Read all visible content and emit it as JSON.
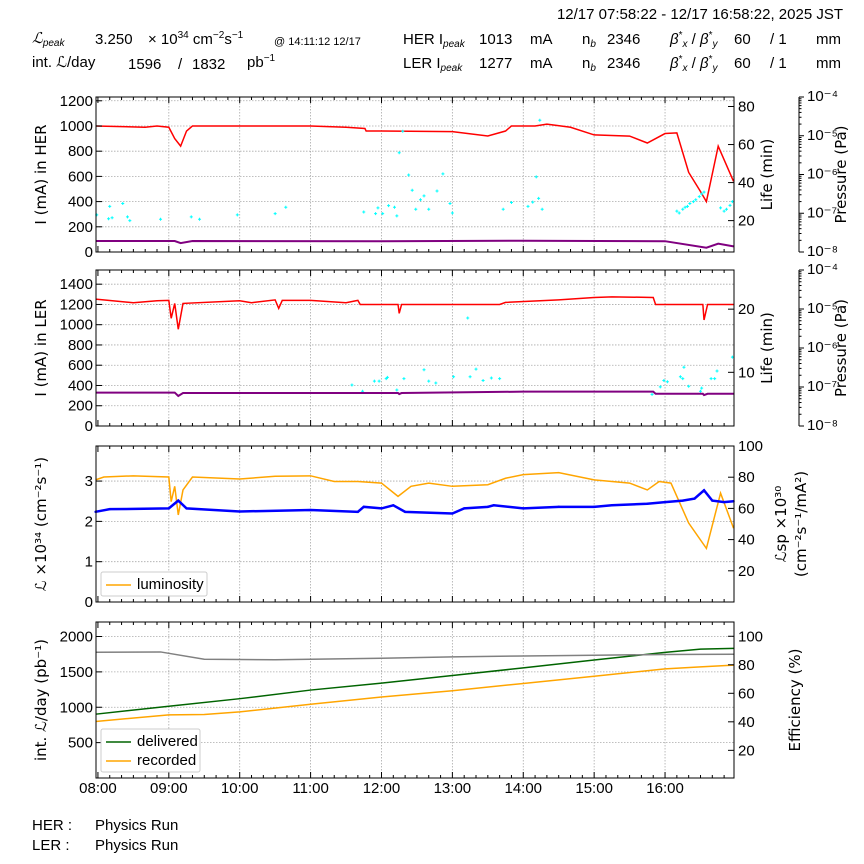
{
  "header": {
    "time_range": "12/17 07:58:22 - 12/17 16:58:22, 2025 JST",
    "lpeak_symbol": "ℒ",
    "lpeak_sub": "peak",
    "lpeak_value": "3.250",
    "lpeak_unit": "× 10",
    "lpeak_exp": "34",
    "lpeak_unit2": " cm",
    "lpeak_exp2": "−2",
    "lpeak_unit3": "s",
    "lpeak_exp3": "−1",
    "lpeak_time": "@ 14:11:12 12/17",
    "int_label": "int. ℒ/day",
    "int_recorded": "1596",
    "int_sep": "/",
    "int_delivered": "1832",
    "int_unit": "pb",
    "int_unit_exp": "−1",
    "rings": [
      {
        "label": "HER I",
        "sub": "peak",
        "current": "1013",
        "unit": "mA",
        "nb_label": "n",
        "nb_sub": "b",
        "nb": "2346",
        "beta_label": "β",
        "beta_x_sub": "x",
        "beta_y_sub": "y",
        "beta_x": "60",
        "beta_y": "/ 1",
        "beta_unit": "mm"
      },
      {
        "label": "LER I",
        "sub": "peak",
        "current": "1277",
        "unit": "mA",
        "nb_label": "n",
        "nb_sub": "b",
        "nb": "2346",
        "beta_label": "β",
        "beta_x_sub": "x",
        "beta_y_sub": "y",
        "beta_x": "60",
        "beta_y": "/ 1",
        "beta_unit": "mm"
      }
    ]
  },
  "footer": {
    "her_label": "HER :",
    "her_status": "Physics Run",
    "ler_label": "LER :",
    "ler_status": "Physics Run"
  },
  "chart_data": [
    {
      "type": "line",
      "ylabel": "I (mA) in HER",
      "ylabel_right": "Life (min)",
      "ylabel_pressure": "Pressure (Pa)",
      "xlim": [
        "07:58:22",
        "16:58:22"
      ],
      "xticks": [
        "08:00",
        "09:00",
        "10:00",
        "11:00",
        "12:00",
        "13:00",
        "14:00",
        "15:00",
        "16:00"
      ],
      "ylim": [
        0,
        1230
      ],
      "yticks": [
        0,
        200,
        400,
        600,
        800,
        1000,
        1200
      ],
      "ylim_right": [
        3.5,
        85
      ],
      "yticks_right": [
        20,
        40,
        60,
        80
      ],
      "pressure_lim": [
        1e-08,
        0.0001
      ],
      "pressure_ticks": [
        "10⁻⁸",
        "10⁻⁷",
        "10⁻⁶",
        "10⁻⁵",
        "10⁻⁴"
      ],
      "grid": true,
      "series": [
        {
          "id": "her-current",
          "axis": "left",
          "style": "line",
          "color": "#ff0000",
          "x": [
            "07:58",
            "08:40",
            "08:50",
            "09:00",
            "09:05",
            "09:10",
            "09:15",
            "09:20",
            "10:00",
            "11:00",
            "11:30",
            "11:46",
            "11:47",
            "12:00",
            "13:00",
            "13:30",
            "13:45",
            "13:50",
            "14:10",
            "14:20",
            "14:40",
            "15:00",
            "15:30",
            "15:45",
            "16:00",
            "16:10",
            "16:20",
            "16:30",
            "16:35",
            "16:45",
            "16:58"
          ],
          "y": [
            1000,
            990,
            1000,
            990,
            900,
            840,
            960,
            1000,
            1000,
            1000,
            990,
            980,
            960,
            960,
            955,
            921,
            960,
            1000,
            1000,
            1015,
            990,
            929,
            920,
            865,
            940,
            945,
            632,
            480,
            400,
            840,
            560
          ]
        },
        {
          "id": "her-life",
          "axis": "right",
          "style": "scatter",
          "color": "#00ffff",
          "x": [
            "07:59",
            "08:09",
            "08:10",
            "08:12",
            "08:21",
            "08:25",
            "08:27",
            "08:53",
            "09:19",
            "09:26",
            "09:58",
            "10:30",
            "10:39",
            "11:45",
            "11:55",
            "11:57",
            "12:01",
            "12:06",
            "12:11",
            "12:13",
            "12:15",
            "12:18",
            "12:23",
            "12:26",
            "12:29",
            "12:33",
            "12:36",
            "12:40",
            "12:47",
            "12:52",
            "12:58",
            "13:00",
            "13:43",
            "13:50",
            "14:04",
            "14:08",
            "14:11",
            "14:13",
            "14:14",
            "14:16",
            "16:10",
            "16:12",
            "16:15",
            "16:17",
            "16:19",
            "16:21",
            "16:24",
            "16:26",
            "16:29",
            "16:31",
            "16:33",
            "16:47",
            "16:50",
            "16:52",
            "16:55",
            "16:57"
          ],
          "y": [
            23,
            21,
            27.5,
            21.5,
            29,
            22,
            20,
            20.7,
            22,
            20.7,
            23,
            23.7,
            27,
            24.5,
            23.7,
            26.7,
            23.7,
            27.9,
            27,
            22.5,
            55.7,
            67,
            44,
            36,
            26,
            31,
            33,
            26,
            35.6,
            44.6,
            29,
            24,
            26,
            29.5,
            27.5,
            29.7,
            43,
            31.7,
            72.8,
            26,
            25,
            24,
            26,
            27,
            27.5,
            29,
            30,
            31,
            32.6,
            34,
            35,
            26.7,
            25,
            26,
            28,
            30
          ]
        },
        {
          "id": "her-pressure",
          "axis": "pressure",
          "style": "line",
          "color": "#800080",
          "x": [
            "07:58",
            "09:05",
            "09:10",
            "09:20",
            "12:00",
            "14:00",
            "16:00",
            "16:35",
            "16:45",
            "16:58"
          ],
          "y": [
            1.92e-08,
            1.92e-08,
            1.7e-08,
            1.92e-08,
            1.9e-08,
            1.95e-08,
            1.9e-08,
            1.29e-08,
            1.64e-08,
            1.4e-08
          ]
        }
      ]
    },
    {
      "type": "line",
      "ylabel": "I (mA) in LER",
      "ylabel_right": "Life (min)",
      "ylabel_pressure": "Pressure (Pa)",
      "xlim": [
        "07:58:22",
        "16:58:22"
      ],
      "ylim": [
        0,
        1540
      ],
      "yticks": [
        0,
        200,
        400,
        600,
        800,
        1000,
        1200,
        1400
      ],
      "ylim_right": [
        1.5,
        26.2
      ],
      "yticks_right": [
        10,
        20
      ],
      "pressure_lim": [
        1e-08,
        0.0001
      ],
      "pressure_ticks": [
        "10⁻⁸",
        "10⁻⁷",
        "10⁻⁶",
        "10⁻⁵",
        "10⁻⁴"
      ],
      "grid": true,
      "series": [
        {
          "id": "ler-current",
          "axis": "left",
          "style": "line",
          "color": "#ff0000",
          "x": [
            "07:58",
            "08:30",
            "08:50",
            "09:00",
            "09:02",
            "09:05",
            "09:08",
            "09:12",
            "10:00",
            "10:10",
            "10:30",
            "10:33",
            "10:36",
            "11:00",
            "11:30",
            "11:40",
            "11:42",
            "12:14",
            "12:15",
            "12:17",
            "13:40",
            "13:45",
            "14:30",
            "15:00",
            "15:15",
            "15:50",
            "15:52",
            "16:32",
            "16:33",
            "16:36",
            "16:58"
          ],
          "y": [
            1253,
            1217,
            1236,
            1240,
            1063,
            1210,
            955,
            1210,
            1236,
            1217,
            1245,
            1161,
            1240,
            1240,
            1217,
            1240,
            1200,
            1200,
            1112,
            1200,
            1200,
            1220,
            1245,
            1269,
            1275,
            1269,
            1200,
            1200,
            1047,
            1200,
            1200
          ]
        },
        {
          "id": "ler-life",
          "axis": "right",
          "style": "scatter",
          "color": "#00ffff",
          "x": [
            "11:35",
            "11:44",
            "11:54",
            "11:58",
            "12:04",
            "12:05",
            "12:13",
            "12:19",
            "12:36",
            "12:40",
            "12:46",
            "13:01",
            "13:13",
            "13:15",
            "13:20",
            "13:26",
            "13:33",
            "13:40",
            "15:49",
            "15:56",
            "15:59",
            "16:02",
            "16:13",
            "16:15",
            "16:16",
            "16:20",
            "16:30",
            "16:31",
            "16:39",
            "16:42",
            "16:44",
            "16:57"
          ],
          "y": [
            8,
            7,
            8.6,
            8.6,
            9,
            9.2,
            7.2,
            9,
            10.4,
            8.6,
            8.3,
            9.3,
            18.6,
            9.3,
            10.5,
            8.7,
            9.1,
            9,
            6.5,
            7.7,
            8.7,
            8.5,
            9.3,
            9,
            10.8,
            7.8,
            7,
            7.5,
            9,
            9,
            10.2,
            12.4
          ]
        },
        {
          "id": "ler-pressure",
          "axis": "pressure",
          "style": "line",
          "color": "#800080",
          "x": [
            "07:58",
            "09:05",
            "09:08",
            "09:12",
            "12:14",
            "12:15",
            "12:17",
            "14:00",
            "15:50",
            "15:52",
            "16:32",
            "16:33",
            "16:36",
            "16:58"
          ],
          "y": [
            7.2e-08,
            7.2e-08,
            5.9e-08,
            7e-08,
            7e-08,
            6.6e-08,
            7e-08,
            7.6e-08,
            7.6e-08,
            6.7e-08,
            6.7e-08,
            6.2e-08,
            6.7e-08,
            6.7e-08
          ]
        }
      ]
    },
    {
      "type": "line",
      "ylabel": "ℒ ×10³⁴ (cm⁻²s⁻¹)",
      "ylabel_right": "ℒsp ×10³⁰",
      "ylabel_right2": "(cm⁻²s⁻¹/mA²)",
      "xlim": [
        "07:58:22",
        "16:58:22"
      ],
      "ylim": [
        0,
        3.87
      ],
      "yticks": [
        0,
        1,
        2,
        3
      ],
      "ylim_right": [
        0,
        100
      ],
      "yticks_right": [
        20,
        40,
        60,
        80,
        100
      ],
      "grid": true,
      "legend": {
        "placement": "lower-left",
        "entries": [
          "luminosity"
        ]
      },
      "series": [
        {
          "id": "luminosity",
          "name": "luminosity",
          "axis": "left",
          "style": "line",
          "color": "#ffa500",
          "x": [
            "07:58",
            "08:05",
            "08:30",
            "09:00",
            "09:02",
            "09:05",
            "09:08",
            "09:12",
            "09:20",
            "10:00",
            "10:30",
            "11:00",
            "11:20",
            "11:40",
            "12:00",
            "12:14",
            "12:25",
            "12:40",
            "13:00",
            "13:30",
            "13:45",
            "14:00",
            "14:30",
            "15:00",
            "15:30",
            "15:45",
            "15:55",
            "16:05",
            "16:20",
            "16:35",
            "16:47",
            "16:58"
          ],
          "y": [
            3.03,
            3.1,
            3.13,
            3.1,
            2.49,
            2.87,
            2.16,
            2.78,
            3.1,
            3.05,
            3.12,
            3.13,
            2.99,
            2.99,
            2.95,
            2.62,
            2.87,
            2.95,
            2.87,
            2.91,
            3.07,
            3.16,
            3.21,
            3.03,
            2.95,
            2.78,
            2.99,
            2.95,
            1.96,
            1.33,
            2.7,
            1.83
          ]
        },
        {
          "id": "specific-luminosity",
          "axis": "right",
          "style": "dots",
          "color": "#0000ff",
          "x": [
            "07:58",
            "08:10",
            "09:00",
            "09:08",
            "09:15",
            "10:00",
            "11:00",
            "11:40",
            "11:45",
            "12:00",
            "12:10",
            "12:20",
            "13:00",
            "13:10",
            "13:30",
            "13:35",
            "14:00",
            "14:30",
            "15:00",
            "15:15",
            "15:45",
            "16:00",
            "16:15",
            "16:25",
            "16:33",
            "16:40",
            "16:50",
            "16:58"
          ],
          "y": [
            57.8,
            59.5,
            60,
            65,
            60,
            58,
            59,
            57.8,
            61,
            60,
            62,
            57.8,
            56.7,
            60,
            61,
            62,
            60,
            61,
            61,
            62,
            63,
            64,
            65,
            66.3,
            71.6,
            65,
            64,
            64.6
          ]
        }
      ]
    },
    {
      "type": "line",
      "ylabel": "int. ℒ/day (pb⁻¹)",
      "ylabel_right": "Efficiency (%)",
      "xlim": [
        "07:58:22",
        "16:58:22"
      ],
      "ylim": [
        0,
        2205
      ],
      "yticks": [
        500,
        1000,
        1500,
        2000
      ],
      "ylim_right": [
        0.6,
        110
      ],
      "yticks_right": [
        20,
        40,
        60,
        80,
        100
      ],
      "grid": true,
      "legend": {
        "placement": "lower-left",
        "entries": [
          "delivered",
          "recorded"
        ]
      },
      "series": [
        {
          "id": "delivered",
          "name": "delivered",
          "axis": "left",
          "style": "line",
          "color": "#006400",
          "x": [
            "07:58",
            "09:00",
            "10:00",
            "11:00",
            "12:00",
            "13:00",
            "14:00",
            "15:00",
            "16:00",
            "16:30",
            "16:58"
          ],
          "y": [
            902,
            1014,
            1121,
            1243,
            1341,
            1449,
            1556,
            1668,
            1776,
            1822,
            1832
          ]
        },
        {
          "id": "recorded",
          "name": "recorded",
          "axis": "left",
          "style": "line",
          "color": "#ffa500",
          "x": [
            "07:58",
            "09:00",
            "09:30",
            "10:00",
            "11:00",
            "12:00",
            "13:00",
            "14:00",
            "15:00",
            "16:00",
            "16:30",
            "16:58"
          ],
          "y": [
            799,
            893,
            897,
            935,
            1042,
            1145,
            1234,
            1336,
            1439,
            1542,
            1570,
            1596
          ]
        },
        {
          "id": "efficiency",
          "axis": "right",
          "style": "line",
          "color": "#808080",
          "x": [
            "07:58",
            "08:53",
            "09:30",
            "10:00",
            "10:30",
            "11:00",
            "12:00",
            "13:00",
            "14:00",
            "15:00",
            "16:00",
            "16:58"
          ],
          "y": [
            88.8,
            89,
            83.9,
            83.7,
            83.5,
            83.9,
            84.6,
            85.5,
            86.2,
            86.7,
            87.2,
            87.4
          ]
        }
      ]
    }
  ]
}
